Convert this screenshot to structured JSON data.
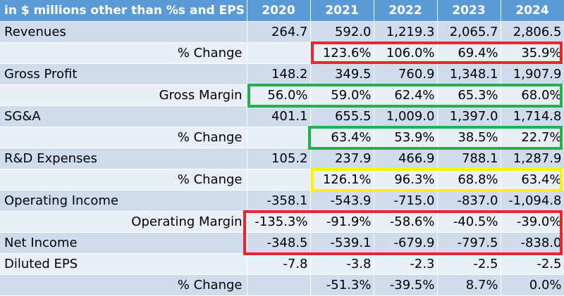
{
  "header": {
    "label": "in $ millions other than %s and EPS",
    "years": [
      "2020",
      "2021",
      "2022",
      "2023",
      "2024"
    ]
  },
  "rows": [
    {
      "label": "Revenues",
      "indent": false,
      "values": [
        "264.7",
        "592.0",
        "1,219.3",
        "2,065.7",
        "2,806.5"
      ]
    },
    {
      "label": "% Change",
      "indent": true,
      "values": [
        "",
        "123.6%",
        "106.0%",
        "69.4%",
        "35.9%"
      ]
    },
    {
      "label": "Gross Profit",
      "indent": false,
      "values": [
        "148.2",
        "349.5",
        "760.9",
        "1,348.1",
        "1,907.9"
      ]
    },
    {
      "label": "Gross Margin",
      "indent": true,
      "values": [
        "56.0%",
        "59.0%",
        "62.4%",
        "65.3%",
        "68.0%"
      ]
    },
    {
      "label": "SG&A",
      "indent": false,
      "values": [
        "401.1",
        "655.5",
        "1,009.0",
        "1,397.0",
        "1,714.8"
      ]
    },
    {
      "label": "% Change",
      "indent": true,
      "values": [
        "",
        "63.4%",
        "53.9%",
        "38.5%",
        "22.7%"
      ]
    },
    {
      "label": "R&D Expenses",
      "indent": false,
      "values": [
        "105.2",
        "237.9",
        "466.9",
        "788.1",
        "1,287.9"
      ]
    },
    {
      "label": "% Change",
      "indent": true,
      "values": [
        "",
        "126.1%",
        "96.3%",
        "68.8%",
        "63.4%"
      ]
    },
    {
      "label": "Operating Income",
      "indent": false,
      "values": [
        "-358.1",
        "-543.9",
        "-715.0",
        "-837.0",
        "-1,094.8"
      ]
    },
    {
      "label": "Operating Margin",
      "indent": true,
      "values": [
        "-135.3%",
        "-91.9%",
        "-58.6%",
        "-40.5%",
        "-39.0%"
      ]
    },
    {
      "label": "Net Income",
      "indent": false,
      "values": [
        "-348.5",
        "-539.1",
        "-679.9",
        "-797.5",
        "-838.0"
      ]
    },
    {
      "label": "Diluted EPS",
      "indent": false,
      "values": [
        "-7.8",
        "-3.8",
        "-2.3",
        "-2.5",
        "-2.5"
      ]
    },
    {
      "label": "% Change",
      "indent": true,
      "values": [
        "",
        "-51.3%",
        "-39.5%",
        "8.7%",
        "0.0%"
      ]
    }
  ],
  "colors": {
    "header_bg": "#5b9bd5",
    "row_dark": "#cfdcee",
    "row_light": "#e9eff7",
    "highlight_red": "#e8262e",
    "highlight_green": "#22b14c",
    "highlight_yellow": "#fff200"
  }
}
